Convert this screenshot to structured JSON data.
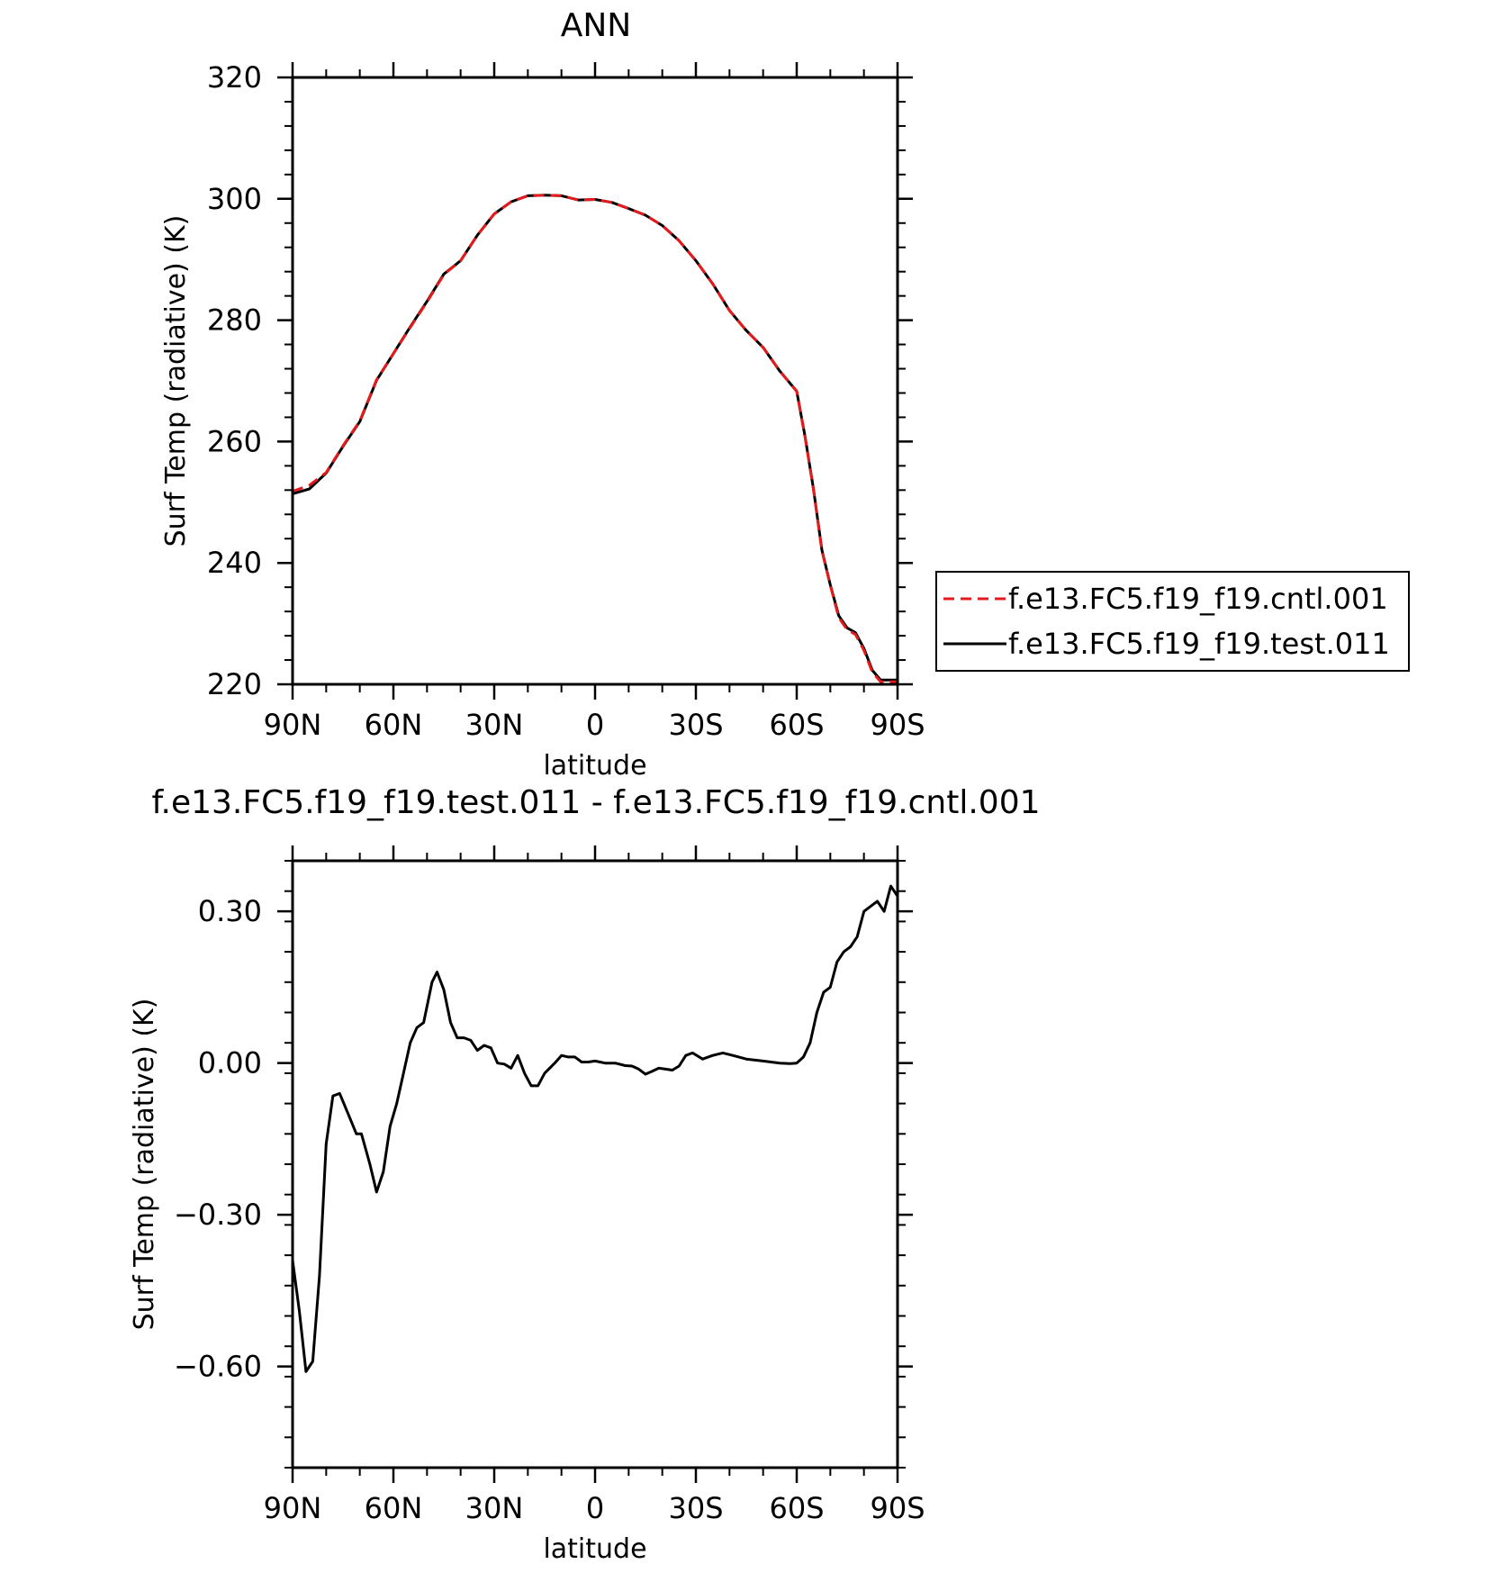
{
  "chart_data": [
    {
      "type": "line",
      "title": "ANN",
      "xlabel": "latitude",
      "ylabel": "Surf Temp (radiative) (K)",
      "xlim": [
        90,
        -90
      ],
      "ylim": [
        220,
        320
      ],
      "x_ticks": [
        90,
        60,
        30,
        0,
        -30,
        -60,
        -90
      ],
      "x_tick_labels": [
        "90N",
        "60N",
        "30N",
        "0",
        "30S",
        "60S",
        "90S"
      ],
      "y_ticks": [
        220,
        240,
        260,
        280,
        300,
        320
      ],
      "y_tick_labels": [
        "220",
        "240",
        "260",
        "280",
        "300",
        "320"
      ],
      "legend_position": "right",
      "x": [
        90,
        85,
        80,
        75,
        70,
        65,
        60,
        55,
        50,
        45,
        40,
        35,
        30,
        25,
        20,
        15,
        10,
        5,
        0,
        -5,
        -10,
        -15,
        -20,
        -25,
        -30,
        -35,
        -40,
        -45,
        -50,
        -55,
        -60,
        -62.5,
        -65,
        -67.5,
        -70,
        -72.5,
        -75,
        -77.5,
        -80,
        -82.5,
        -85,
        -87.5,
        -90
      ],
      "series": [
        {
          "name": "f.e13.FC5.f19_f19.cntl.001",
          "color": "#e41a1c",
          "dash": "dashed",
          "values": [
            251.8,
            252.8,
            254.9,
            259.3,
            263.4,
            270.2,
            274.5,
            278.8,
            283.0,
            287.5,
            289.8,
            294.0,
            297.5,
            299.5,
            300.5,
            300.6,
            300.5,
            299.8,
            299.9,
            299.4,
            298.4,
            297.3,
            295.6,
            293.1,
            289.8,
            286.0,
            281.6,
            278.3,
            275.5,
            271.6,
            268.3,
            260.7,
            252.0,
            242.0,
            236.3,
            231.0,
            229.0,
            228.2,
            225.6,
            222.0,
            220.4,
            220.4,
            220.4
          ]
        },
        {
          "name": "f.e13.FC5.f19_f19.test.011",
          "color": "#000000",
          "dash": "solid",
          "values": [
            251.4,
            252.2,
            254.8,
            259.2,
            263.3,
            270.1,
            274.5,
            278.9,
            283.1,
            287.6,
            289.8,
            294.0,
            297.5,
            299.5,
            300.5,
            300.6,
            300.5,
            299.8,
            299.9,
            299.4,
            298.4,
            297.3,
            295.6,
            293.1,
            289.8,
            286.0,
            281.6,
            278.3,
            275.5,
            271.6,
            268.3,
            260.8,
            252.1,
            242.1,
            236.4,
            231.3,
            229.3,
            228.5,
            225.9,
            222.3,
            220.7,
            220.7,
            220.7
          ]
        }
      ]
    },
    {
      "type": "line",
      "title": "f.e13.FC5.f19_f19.test.011 - f.e13.FC5.f19_f19.cntl.001",
      "xlabel": "latitude",
      "ylabel": "Surf Temp (radiative) (K)",
      "xlim": [
        90,
        -90
      ],
      "ylim": [
        -0.8,
        0.4
      ],
      "x_ticks": [
        90,
        60,
        30,
        0,
        -30,
        -60,
        -90
      ],
      "x_tick_labels": [
        "90N",
        "60N",
        "30N",
        "0",
        "30S",
        "60S",
        "90S"
      ],
      "y_ticks": [
        -0.6,
        -0.3,
        0,
        0.3
      ],
      "y_tick_labels": [
        "-0.60",
        "-0.30",
        "0.00",
        "0.30"
      ],
      "x": [
        90,
        88,
        86,
        84,
        82,
        80,
        78,
        76,
        73.5,
        71,
        69.5,
        67,
        65,
        63,
        61,
        59,
        57,
        55,
        53,
        51,
        48.5,
        47,
        45,
        43,
        41,
        39,
        37,
        35,
        33,
        31,
        29,
        27,
        25,
        23,
        21,
        19,
        17,
        15,
        12,
        10,
        8,
        6,
        4,
        2,
        0,
        -3,
        -6,
        -9,
        -11,
        -13,
        -15,
        -17,
        -19,
        -21,
        -23,
        -25,
        -27,
        -29,
        -32,
        -35,
        -38,
        -41,
        -45,
        -50,
        -55,
        -58,
        -60,
        -62,
        -64,
        -66,
        -68,
        -70,
        -72,
        -74,
        -76,
        -78,
        -80,
        -82,
        -84,
        -86,
        -88,
        -90
      ],
      "series": [
        {
          "name": "",
          "color": "#000000",
          "dash": "solid",
          "values": [
            -0.39,
            -0.49,
            -0.61,
            -0.59,
            -0.42,
            -0.16,
            -0.065,
            -0.06,
            -0.1,
            -0.14,
            -0.14,
            -0.2,
            -0.255,
            -0.215,
            -0.125,
            -0.08,
            -0.02,
            0.04,
            0.07,
            0.08,
            0.16,
            0.18,
            0.145,
            0.08,
            0.05,
            0.05,
            0.045,
            0.025,
            0.035,
            0.03,
            0.0,
            -0.002,
            -0.01,
            0.015,
            -0.02,
            -0.045,
            -0.045,
            -0.02,
            0.0,
            0.015,
            0.012,
            0.012,
            0.002,
            0.002,
            0.004,
            0.0,
            0.0,
            -0.005,
            -0.006,
            -0.012,
            -0.022,
            -0.016,
            -0.01,
            -0.012,
            -0.014,
            -0.006,
            0.015,
            0.02,
            0.008,
            0.015,
            0.02,
            0.015,
            0.008,
            0.004,
            0.0,
            -0.001,
            0.0,
            0.012,
            0.04,
            0.1,
            0.14,
            0.15,
            0.2,
            0.22,
            0.23,
            0.25,
            0.3,
            0.31,
            0.32,
            0.3,
            0.35,
            0.33
          ]
        }
      ]
    }
  ]
}
